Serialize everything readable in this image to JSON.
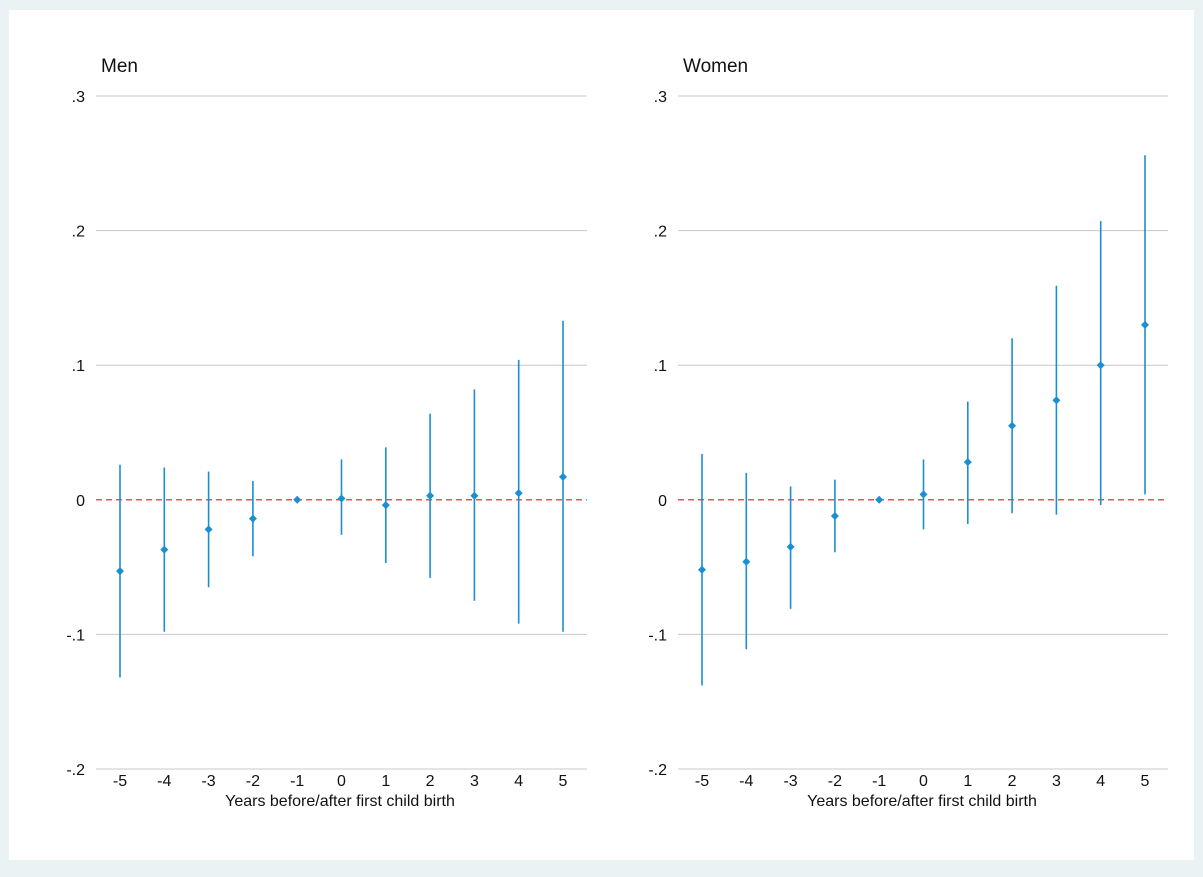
{
  "colors": {
    "marker": "#1a8fd1",
    "zero_line": "#e31a1c",
    "grid": "#c8c8c8",
    "outer_background": "#eaf2f3",
    "plot_background": "#ffffff"
  },
  "chart_data": [
    {
      "type": "scatter",
      "title": "Men",
      "xlabel": "Years before/after first child birth",
      "ylabel": "",
      "x": [
        -5,
        -4,
        -3,
        -2,
        -1,
        0,
        1,
        2,
        3,
        4,
        5
      ],
      "x_tick_labels": [
        "-5",
        "-4",
        "-3",
        "-2",
        "-1",
        "0",
        "1",
        "2",
        "3",
        "4",
        "5"
      ],
      "series": [
        {
          "values": [
            -0.053,
            -0.037,
            -0.022,
            -0.014,
            0.0,
            0.001,
            -0.004,
            0.003,
            0.003,
            0.005,
            0.017
          ],
          "ci_low": [
            -0.132,
            -0.098,
            -0.065,
            -0.042,
            0.0,
            -0.026,
            -0.047,
            -0.058,
            -0.075,
            -0.092,
            -0.098
          ],
          "ci_high": [
            0.026,
            0.024,
            0.021,
            0.014,
            0.0,
            0.03,
            0.039,
            0.064,
            0.082,
            0.104,
            0.133
          ]
        }
      ],
      "ylim": [
        -0.2,
        0.3
      ],
      "y_ticks": [
        -0.2,
        -0.1,
        0,
        0.1,
        0.2,
        0.3
      ],
      "y_tick_labels": [
        "-.2",
        "-.1",
        "0",
        ".1",
        ".2",
        ".3"
      ],
      "reference_line": 0,
      "grid": true,
      "legend": "none"
    },
    {
      "type": "scatter",
      "title": "Women",
      "xlabel": "Years before/after first child birth",
      "ylabel": "",
      "x": [
        -5,
        -4,
        -3,
        -2,
        -1,
        0,
        1,
        2,
        3,
        4,
        5
      ],
      "x_tick_labels": [
        "-5",
        "-4",
        "-3",
        "-2",
        "-1",
        "0",
        "1",
        "2",
        "3",
        "4",
        "5"
      ],
      "series": [
        {
          "values": [
            -0.052,
            -0.046,
            -0.035,
            -0.012,
            0.0,
            0.004,
            0.028,
            0.055,
            0.074,
            0.1,
            0.13
          ],
          "ci_low": [
            -0.138,
            -0.111,
            -0.081,
            -0.039,
            0.0,
            -0.022,
            -0.018,
            -0.01,
            -0.011,
            -0.004,
            0.004
          ],
          "ci_high": [
            0.034,
            0.02,
            0.01,
            0.015,
            0.0,
            0.03,
            0.073,
            0.12,
            0.159,
            0.207,
            0.256
          ]
        }
      ],
      "ylim": [
        -0.2,
        0.3
      ],
      "y_ticks": [
        -0.2,
        -0.1,
        0,
        0.1,
        0.2,
        0.3
      ],
      "y_tick_labels": [
        "-.2",
        "-.1",
        "0",
        ".1",
        ".2",
        ".3"
      ],
      "reference_line": 0,
      "grid": true,
      "legend": "none"
    }
  ]
}
